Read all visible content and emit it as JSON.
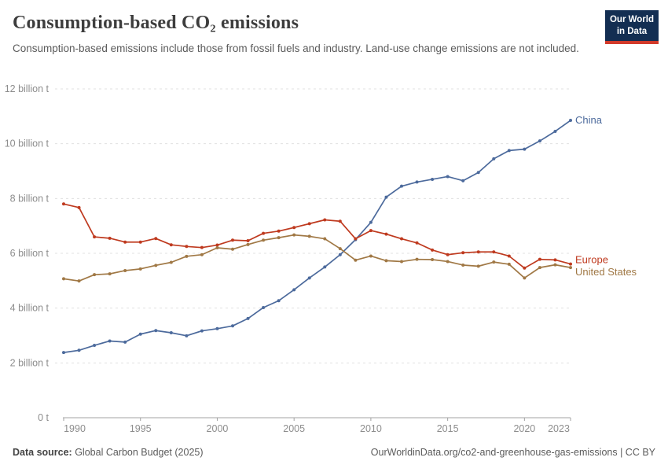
{
  "header": {
    "title": "Consumption-based CO₂ emissions",
    "subtitle": "Consumption-based emissions include those from fossil fuels and industry. Land-use change emissions are not included."
  },
  "logo": {
    "line1": "Our World",
    "line2": "in Data",
    "bg_color": "#132E52",
    "bar_color": "#D23A2A"
  },
  "chart_data": {
    "type": "line",
    "x_label": "",
    "y_label": "",
    "xlim": [
      1990,
      2023
    ],
    "ylim": [
      0,
      12
    ],
    "grid": "horizontal-dashed",
    "legend": "end-of-line-labels",
    "x": [
      1990,
      1991,
      1992,
      1993,
      1994,
      1995,
      1996,
      1997,
      1998,
      1999,
      2000,
      2001,
      2002,
      2003,
      2004,
      2005,
      2006,
      2007,
      2008,
      2009,
      2010,
      2011,
      2012,
      2013,
      2014,
      2015,
      2016,
      2017,
      2018,
      2019,
      2020,
      2021,
      2022,
      2023
    ],
    "series": [
      {
        "name": "China",
        "color": "#4C6A9C",
        "label_dy": 4,
        "values": [
          2.38,
          2.46,
          2.64,
          2.8,
          2.76,
          3.05,
          3.18,
          3.1,
          2.99,
          3.17,
          3.25,
          3.35,
          3.62,
          4.02,
          4.27,
          4.67,
          5.1,
          5.5,
          5.95,
          6.5,
          7.13,
          8.05,
          8.45,
          8.6,
          8.7,
          8.8,
          8.65,
          8.95,
          9.45,
          9.75,
          9.8,
          10.1,
          10.45,
          10.85
        ]
      },
      {
        "name": "Europe",
        "color": "#BF3A1F",
        "label_dy": -1,
        "values": [
          7.8,
          7.67,
          6.6,
          6.55,
          6.41,
          6.41,
          6.54,
          6.31,
          6.25,
          6.21,
          6.3,
          6.48,
          6.46,
          6.73,
          6.81,
          6.94,
          7.08,
          7.22,
          7.17,
          6.53,
          6.83,
          6.7,
          6.53,
          6.38,
          6.12,
          5.95,
          6.02,
          6.05,
          6.05,
          5.9,
          5.46,
          5.78,
          5.76,
          5.61
        ]
      },
      {
        "name": "United States",
        "color": "#A07845",
        "label_dy": 10,
        "values": [
          5.07,
          4.99,
          5.22,
          5.25,
          5.37,
          5.43,
          5.56,
          5.67,
          5.89,
          5.95,
          6.2,
          6.15,
          6.32,
          6.48,
          6.57,
          6.67,
          6.62,
          6.53,
          6.17,
          5.75,
          5.9,
          5.73,
          5.7,
          5.78,
          5.77,
          5.7,
          5.57,
          5.53,
          5.68,
          5.6,
          5.1,
          5.48,
          5.58,
          5.48
        ]
      }
    ],
    "yticks": [
      {
        "v": 0,
        "label": "0 t"
      },
      {
        "v": 2,
        "label": "2 billion t"
      },
      {
        "v": 4,
        "label": "4 billion t"
      },
      {
        "v": 6,
        "label": "6 billion t"
      },
      {
        "v": 8,
        "label": "8 billion t"
      },
      {
        "v": 10,
        "label": "10 billion t"
      },
      {
        "v": 12,
        "label": "12 billion t"
      }
    ],
    "xticks": [
      {
        "v": 1990,
        "label": "1990"
      },
      {
        "v": 1995,
        "label": "1995"
      },
      {
        "v": 2000,
        "label": "2000"
      },
      {
        "v": 2005,
        "label": "2005"
      },
      {
        "v": 2010,
        "label": "2010"
      },
      {
        "v": 2015,
        "label": "2015"
      },
      {
        "v": 2020,
        "label": "2020"
      },
      {
        "v": 2023,
        "label": "2023"
      }
    ],
    "colors": {
      "grid": "#E0E0E0",
      "axis": "#A3A3A3",
      "tick_text": "#8D8D8D"
    }
  },
  "footer": {
    "source_label": "Data source:",
    "source_value": " Global Carbon Budget (2025)",
    "license": "OurWorldinData.org/co2-and-greenhouse-gas-emissions | CC BY"
  }
}
